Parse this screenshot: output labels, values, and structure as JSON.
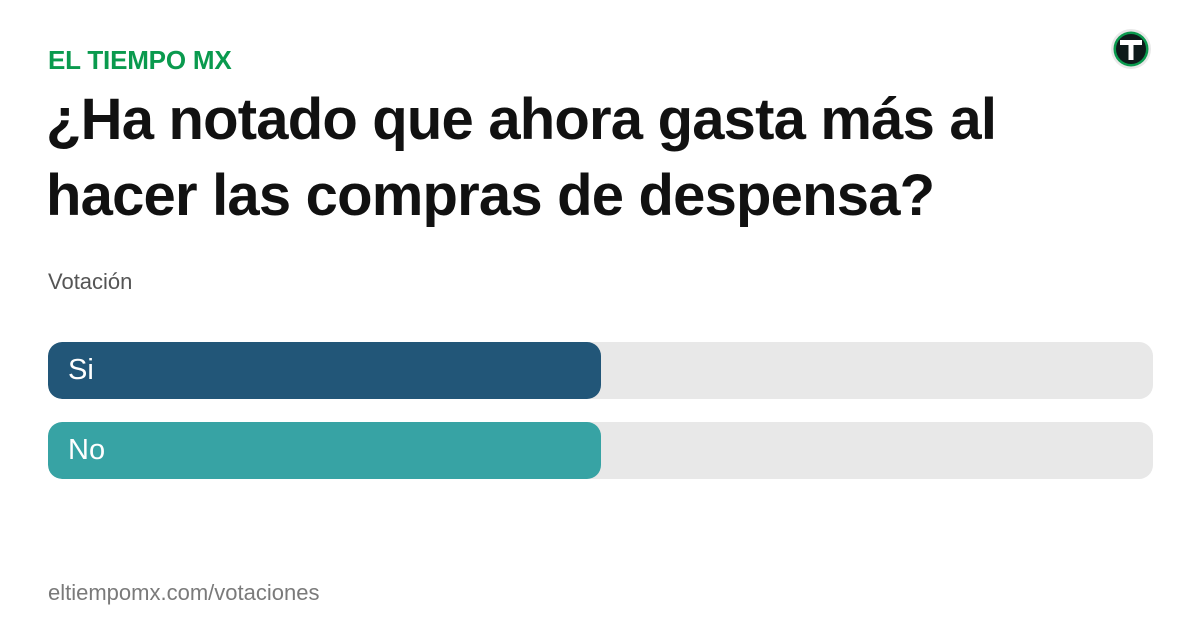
{
  "brand": {
    "name": "EL TIEMPO MX",
    "color": "#0a9a4e"
  },
  "logo": {
    "icon": "el-tiempo-t-logo-icon",
    "colors": {
      "ring": "#0a9a4e",
      "core": "#0d1a1a",
      "letter": "#ffffff"
    }
  },
  "poll": {
    "question": "¿Ha notado que ahora gasta más al hacer las compras de despensa?",
    "type_label": "Votación",
    "track_color": "#e8e8e8",
    "options": [
      {
        "label": "Si",
        "share": 0.5,
        "color": "#225678"
      },
      {
        "label": "No",
        "share": 0.5,
        "color": "#37a3a4"
      }
    ]
  },
  "footer": {
    "url": "eltiempomx.com/votaciones"
  }
}
